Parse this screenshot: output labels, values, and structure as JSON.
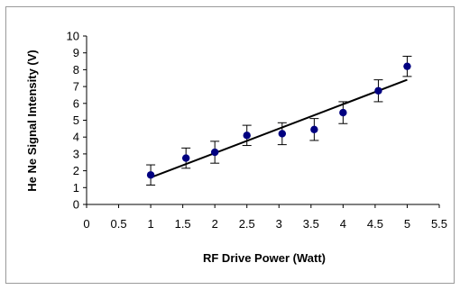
{
  "chart_data": {
    "type": "scatter",
    "xlabel": "RF Drive Power (Watt)",
    "ylabel": "He Ne Signal Intensity (V)",
    "xlim": [
      0,
      5.5
    ],
    "ylim": [
      0,
      10
    ],
    "x_ticks": [
      "0",
      "0.5",
      "1",
      "1.5",
      "2",
      "2.5",
      "3",
      "3.5",
      "4",
      "4.5",
      "5",
      "5.5"
    ],
    "y_ticks": [
      "0",
      "1",
      "2",
      "3",
      "4",
      "5",
      "6",
      "7",
      "8",
      "9",
      "10"
    ],
    "grid": false,
    "legend": "none",
    "marker_color": "#000080",
    "series": [
      {
        "points": [
          {
            "x": 1.0,
            "y": 1.75,
            "err": 0.6
          },
          {
            "x": 1.55,
            "y": 2.75,
            "err": 0.6
          },
          {
            "x": 2.0,
            "y": 3.1,
            "err": 0.65
          },
          {
            "x": 2.5,
            "y": 4.1,
            "err": 0.6
          },
          {
            "x": 3.05,
            "y": 4.2,
            "err": 0.65
          },
          {
            "x": 3.55,
            "y": 4.45,
            "err": 0.65
          },
          {
            "x": 4.0,
            "y": 5.45,
            "err": 0.65
          },
          {
            "x": 4.55,
            "y": 6.75,
            "err": 0.65
          },
          {
            "x": 5.0,
            "y": 8.2,
            "err": 0.6
          }
        ]
      }
    ],
    "trendline": {
      "type": "linear",
      "from": {
        "x": 1.0,
        "y": 1.6
      },
      "to": {
        "x": 5.0,
        "y": 7.4
      },
      "color": "#000000"
    }
  }
}
